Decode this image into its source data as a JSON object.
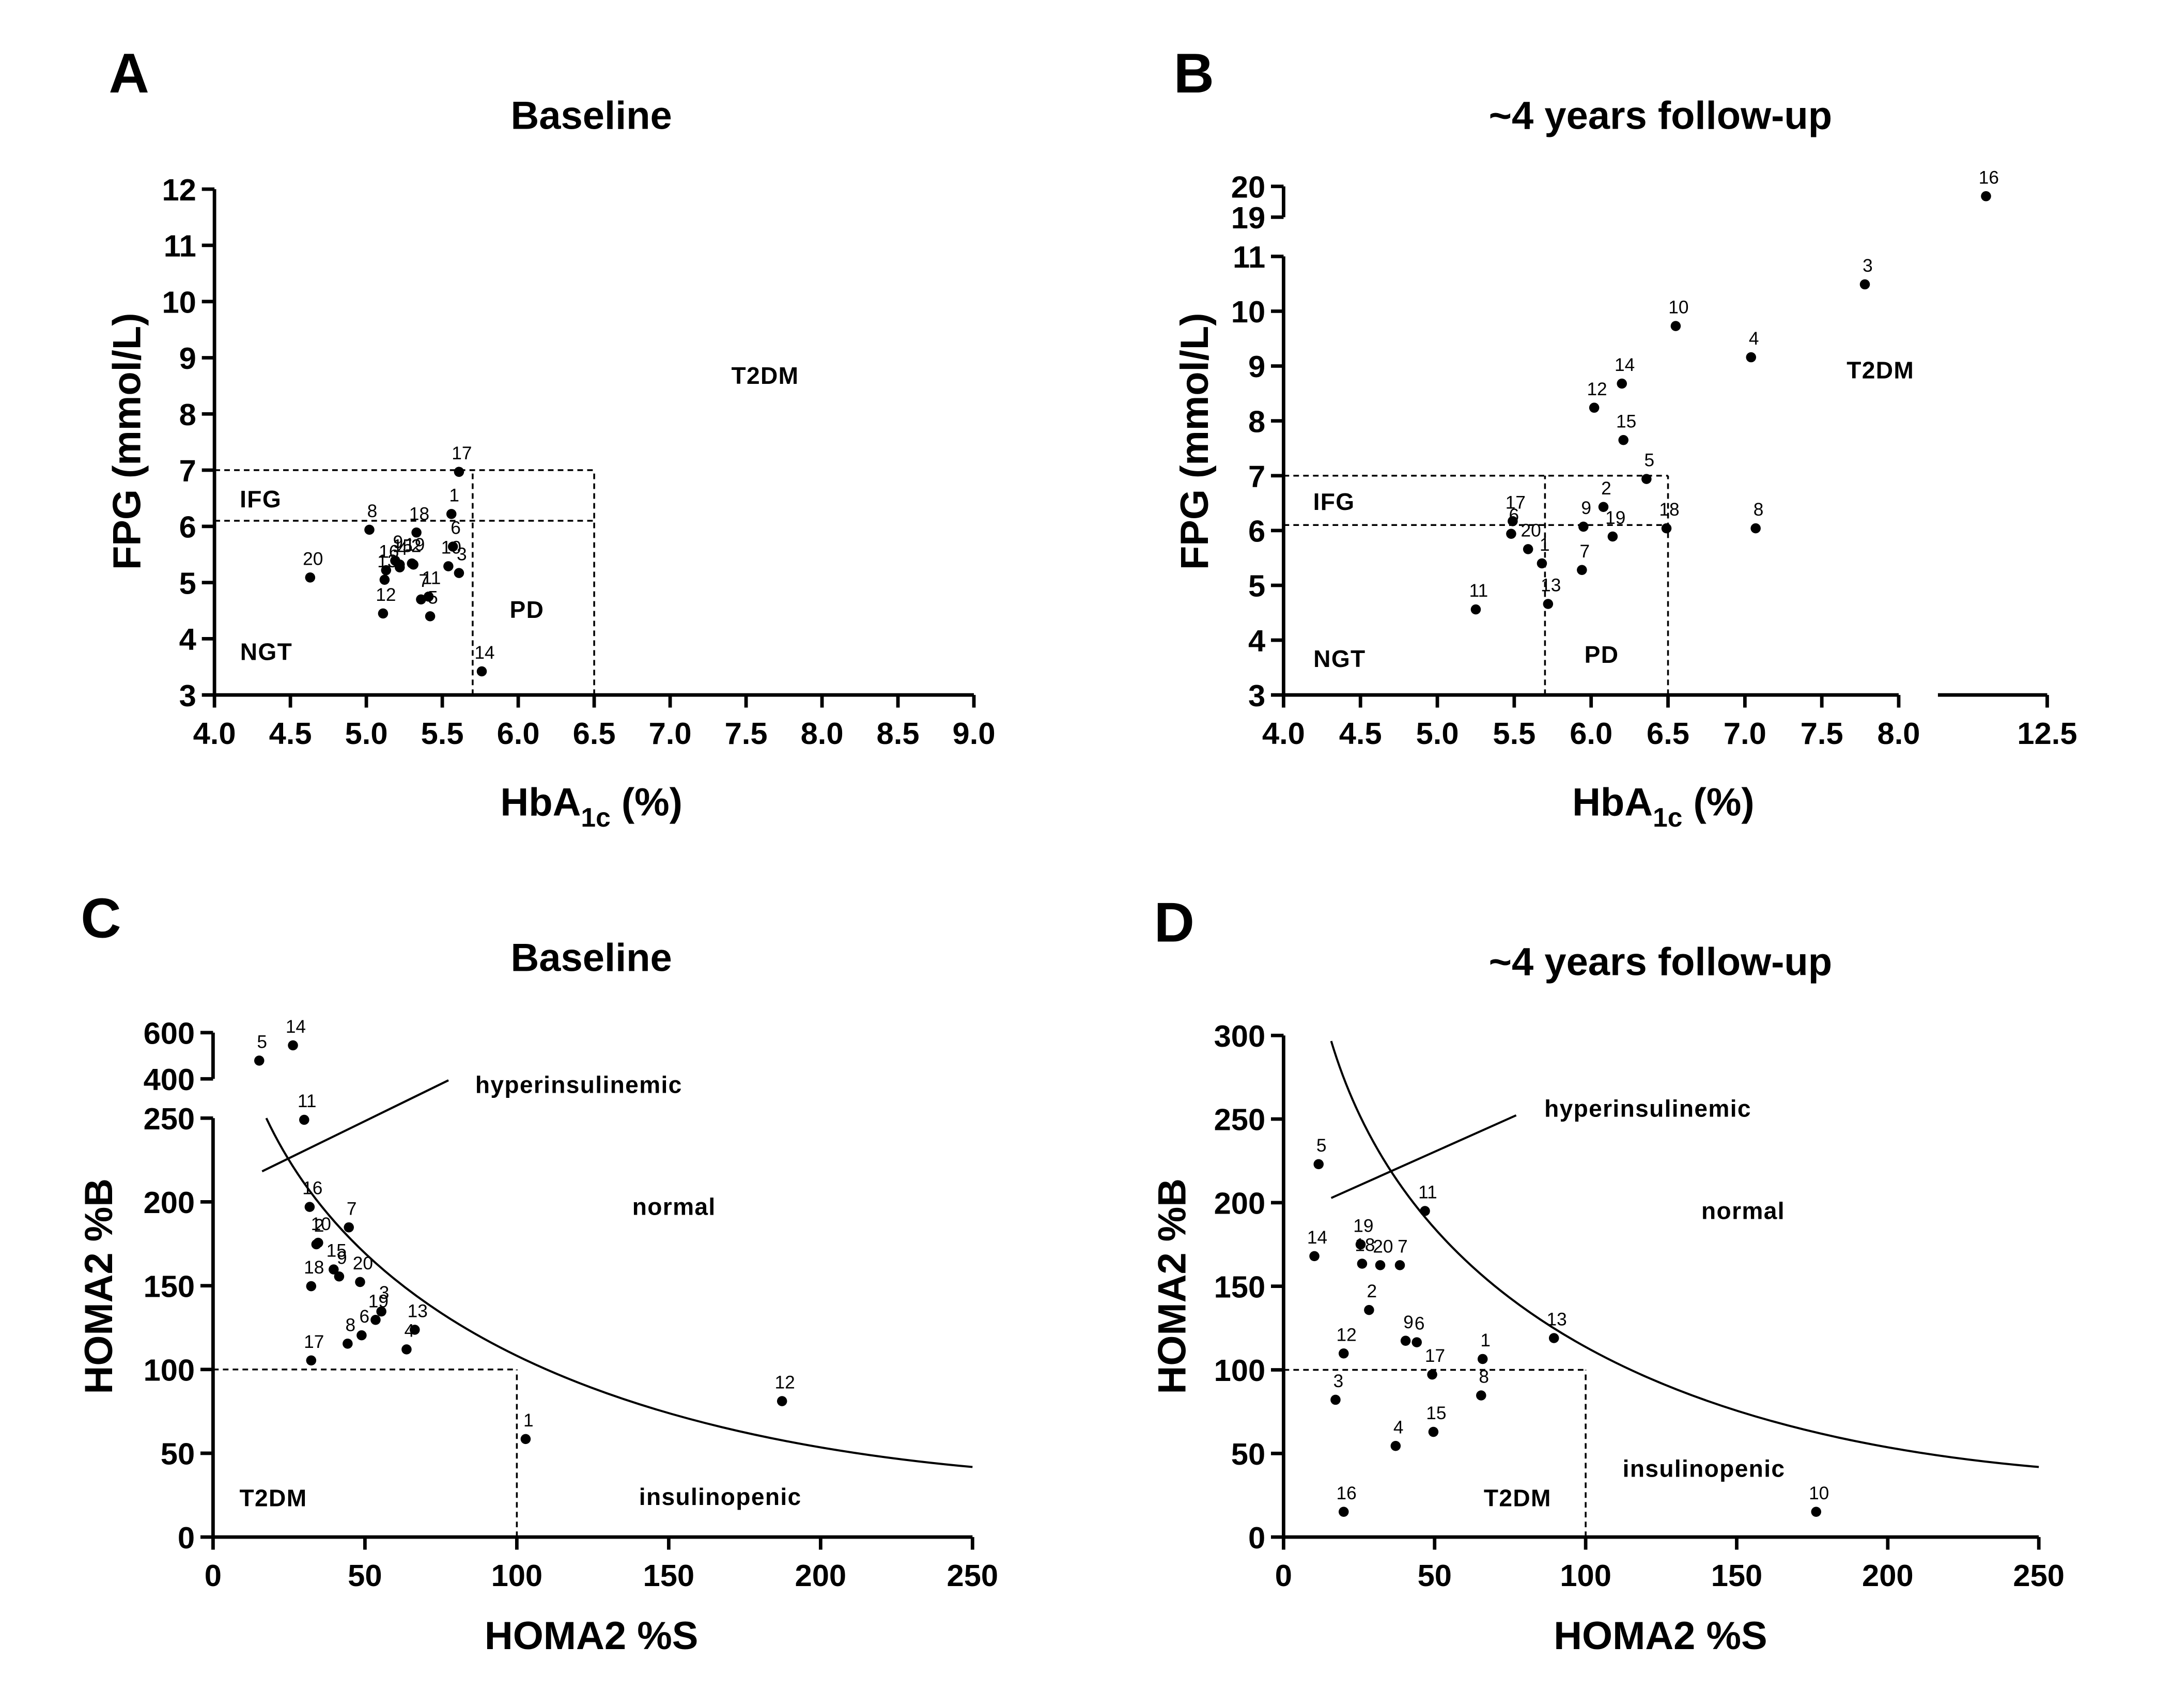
{
  "chart_data": [
    {
      "type": "scatter",
      "panel": "A",
      "title": "Baseline",
      "x_label": {
        "text": "HbA",
        "subscript": "1c",
        "suffix": " (%)"
      },
      "y_label": "FPG (mmol/L)",
      "color": "#000000",
      "xlim": [
        4,
        9
      ],
      "xticks": [
        {
          "value": 4,
          "label": "4.0"
        },
        4.5,
        {
          "value": 5,
          "label": "5.0"
        },
        5.5,
        {
          "value": 6,
          "label": "6.0"
        },
        6.5,
        {
          "value": 7,
          "label": "7.0"
        },
        7.5,
        {
          "value": 8,
          "label": "8.0"
        },
        8.5,
        {
          "value": 9,
          "label": "9.0"
        }
      ],
      "ylim": [
        3,
        12
      ],
      "yticks": [
        3,
        4,
        5,
        6,
        7,
        8,
        9,
        10,
        11,
        12
      ],
      "reference_lines": {
        "x": [
          5.7,
          6.5
        ],
        "y": [
          7.0,
          6.1
        ]
      },
      "annotations": [
        "IFG",
        "NGT",
        "PD",
        "T2DM"
      ],
      "point_labels": [
        "17",
        "1",
        "8",
        "18",
        "15",
        "6",
        "10",
        "19",
        "9",
        "16",
        "2",
        "3",
        "4",
        "13",
        "11",
        "5",
        "7",
        "12",
        "20",
        "14"
      ],
      "x": [
        5.61,
        5.56,
        5.02,
        5.33,
        5.22,
        5.57,
        5.54,
        5.3,
        5.19,
        5.13,
        5.31,
        5.61,
        5.22,
        5.12,
        5.41,
        5.42,
        5.36,
        5.11,
        4.63,
        5.76
      ],
      "y": [
        6.97,
        6.22,
        5.94,
        5.89,
        5.32,
        5.64,
        5.29,
        5.34,
        5.39,
        5.22,
        5.32,
        5.17,
        5.27,
        5.05,
        4.75,
        4.4,
        4.7,
        4.45,
        5.09,
        3.42
      ]
    },
    {
      "type": "scatter",
      "panel": "B",
      "title": "~4 years follow-up",
      "x_label": {
        "text": "HbA",
        "subscript": "1c",
        "suffix": " (%)"
      },
      "y_label": "FPG (mmol/L)",
      "color": "#000000",
      "xsegments": [
        {
          "lim": [
            4,
            8
          ],
          "ticks": [
            {
              "value": 4,
              "label": "4.0"
            },
            4.5,
            {
              "value": 5,
              "label": "5.0"
            },
            5.5,
            {
              "value": 6,
              "label": "6.0"
            },
            6.5,
            {
              "value": 7,
              "label": "7.0"
            },
            7.5,
            {
              "value": 8,
              "label": "8.0"
            }
          ]
        },
        {
          "lim": [
            12,
            12.5
          ],
          "ticks": [
            12.5
          ]
        }
      ],
      "ysegments": [
        {
          "lim": [
            3,
            11
          ],
          "ticks": [
            3,
            4,
            5,
            6,
            7,
            8,
            9,
            10,
            11
          ]
        },
        {
          "lim": [
            19,
            20
          ],
          "ticks": [
            19,
            20
          ]
        }
      ],
      "reference_lines": {
        "x": [
          5.7,
          6.5
        ],
        "y": [
          7.0,
          6.1
        ]
      },
      "annotations": [
        "IFG",
        "NGT",
        "PD",
        "T2DM"
      ],
      "point_labels": [
        "16",
        "3",
        "10",
        "4",
        "14",
        "12",
        "15",
        "5",
        "2",
        "9",
        "17",
        "18",
        "8",
        "6",
        "19",
        "20",
        "1",
        "7",
        "13",
        "11"
      ],
      "x": [
        12.22,
        7.78,
        6.55,
        7.04,
        6.2,
        6.02,
        6.21,
        6.36,
        6.08,
        5.95,
        5.49,
        6.49,
        7.07,
        5.48,
        6.14,
        5.59,
        5.68,
        5.94,
        5.72,
        5.25
      ],
      "y": [
        19.68,
        10.49,
        9.73,
        9.16,
        8.68,
        8.24,
        7.65,
        6.94,
        6.43,
        6.07,
        6.17,
        6.04,
        6.04,
        5.94,
        5.89,
        5.66,
        5.4,
        5.28,
        4.66,
        4.56
      ]
    },
    {
      "type": "scatter",
      "panel": "C",
      "title": "Baseline",
      "x_label": {
        "text": "HOMA2 %S"
      },
      "y_label": "HOMA2 %B",
      "color": "#000000",
      "xlim": [
        0,
        250
      ],
      "xticks": [
        0,
        50,
        100,
        150,
        200,
        250
      ],
      "ysegments": [
        {
          "lim": [
            0,
            250
          ],
          "ticks": [
            0,
            50,
            100,
            150,
            200,
            250
          ]
        },
        {
          "lim": [
            400,
            600
          ],
          "ticks": [
            400,
            600
          ]
        }
      ],
      "reference_lines": {
        "x": [
          100
        ],
        "y": [
          100
        ]
      },
      "annotations": [
        "hyperinsulinemic",
        "normal",
        "T2DM",
        "insulinopenic"
      ],
      "point_labels": [
        "5",
        "14",
        "11",
        "16",
        "10",
        "2",
        "7",
        "15",
        "9",
        "20",
        "18",
        "3",
        "19",
        "13",
        "4",
        "6",
        "8",
        "17",
        "12",
        "1"
      ],
      "x": [
        15.2,
        26.3,
        30,
        31.8,
        34.6,
        34,
        44.7,
        39.7,
        41.5,
        48.4,
        32.3,
        55.4,
        53.5,
        66.4,
        63.7,
        48.9,
        44.3,
        32.3,
        187.3,
        102.9
      ],
      "y": [
        479,
        545,
        249,
        197,
        175.6,
        174.7,
        184.8,
        159.7,
        155.5,
        152.2,
        149.7,
        134.6,
        129.6,
        123.7,
        112,
        120.4,
        115.4,
        105.4,
        81.1,
        58.5
      ]
    },
    {
      "type": "scatter",
      "panel": "D",
      "title": "~4 years follow-up",
      "x_label": {
        "text": "HOMA2 %S"
      },
      "y_label": "HOMA2 %B",
      "color": "#000000",
      "xlim": [
        0,
        250
      ],
      "xticks": [
        0,
        50,
        100,
        150,
        200,
        250
      ],
      "ylim": [
        0,
        300
      ],
      "yticks": [
        0,
        50,
        100,
        150,
        200,
        250,
        300
      ],
      "reference_lines": {
        "x": [
          100
        ],
        "y": [
          100
        ]
      },
      "annotations": [
        "hyperinsulinemic",
        "normal",
        "T2DM",
        "insulinopenic"
      ],
      "point_labels": [
        "5",
        "11",
        "14",
        "19",
        "20",
        "18",
        "7",
        "2",
        "13",
        "9",
        "6",
        "12",
        "1",
        "17",
        "8",
        "3",
        "15",
        "4",
        "16",
        "10"
      ],
      "x": [
        11.6,
        46.8,
        10.2,
        25.5,
        32,
        26,
        38.5,
        28.3,
        89.5,
        40.4,
        44.1,
        19.9,
        65.9,
        49.2,
        65.4,
        17.2,
        49.6,
        37.1,
        19.9,
        176.3
      ],
      "y": [
        223,
        195,
        168,
        175,
        162.6,
        163.5,
        162.6,
        135.8,
        119,
        117.4,
        116.5,
        109.8,
        106.5,
        97.2,
        84.7,
        82.1,
        62.9,
        54.5,
        15.1,
        15.1
      ]
    }
  ]
}
